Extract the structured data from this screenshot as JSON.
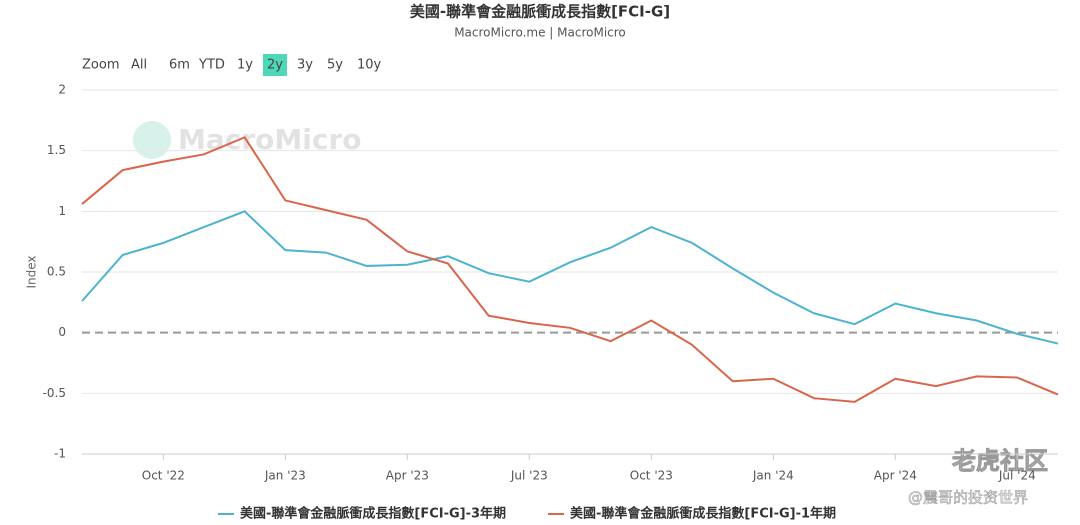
{
  "chart_data": {
    "type": "line",
    "title": "美國-聯準會金融脈衝成長指數[FCI-G]",
    "subtitle": "MacroMicro.me | MacroMicro",
    "y_axis_label": "Index",
    "range_selector": {
      "label": "Zoom",
      "buttons": [
        "All",
        "6m",
        "YTD",
        "1y",
        "2y",
        "3y",
        "5y",
        "10y"
      ],
      "selected": 4
    },
    "watermarks": [
      "MacroMicro",
      "老虎社区",
      "@震哥的投资世界"
    ],
    "categories": [
      null,
      null,
      "Oct '22",
      null,
      null,
      "Jan '23",
      null,
      null,
      "Apr '23",
      null,
      null,
      "Jul '23",
      null,
      null,
      "Oct '23",
      null,
      null,
      "Jan '24",
      null,
      null,
      "Apr '24",
      null,
      null,
      "Jul '24",
      null
    ],
    "series": [
      {
        "name": "美國-聯準會金融脈衝成長指數[FCI-G]-3年期",
        "color": "#4db3d1",
        "values": [
          0.26,
          0.64,
          0.74,
          0.87,
          1.0,
          0.68,
          0.66,
          0.55,
          0.56,
          0.63,
          0.49,
          0.42,
          0.58,
          0.7,
          0.87,
          0.74,
          0.53,
          0.33,
          0.16,
          0.07,
          0.24,
          0.16,
          0.1,
          -0.01,
          -0.09
        ]
      },
      {
        "name": "美國-聯準會金融脈衝成長指數[FCI-G]-1年期",
        "color": "#d9654a",
        "values": [
          1.06,
          1.34,
          1.41,
          1.47,
          1.61,
          1.09,
          1.01,
          0.93,
          0.67,
          0.57,
          0.14,
          0.08,
          0.04,
          -0.07,
          0.1,
          -0.1,
          -0.4,
          -0.38,
          -0.54,
          -0.57,
          -0.38,
          -0.44,
          -0.36,
          -0.37,
          -0.51
        ]
      }
    ],
    "ylim": [
      -1,
      2
    ],
    "yticks": [
      2,
      1.5,
      1,
      0.5,
      0,
      -0.5,
      -1
    ],
    "grid": true,
    "legend": "bottom"
  }
}
